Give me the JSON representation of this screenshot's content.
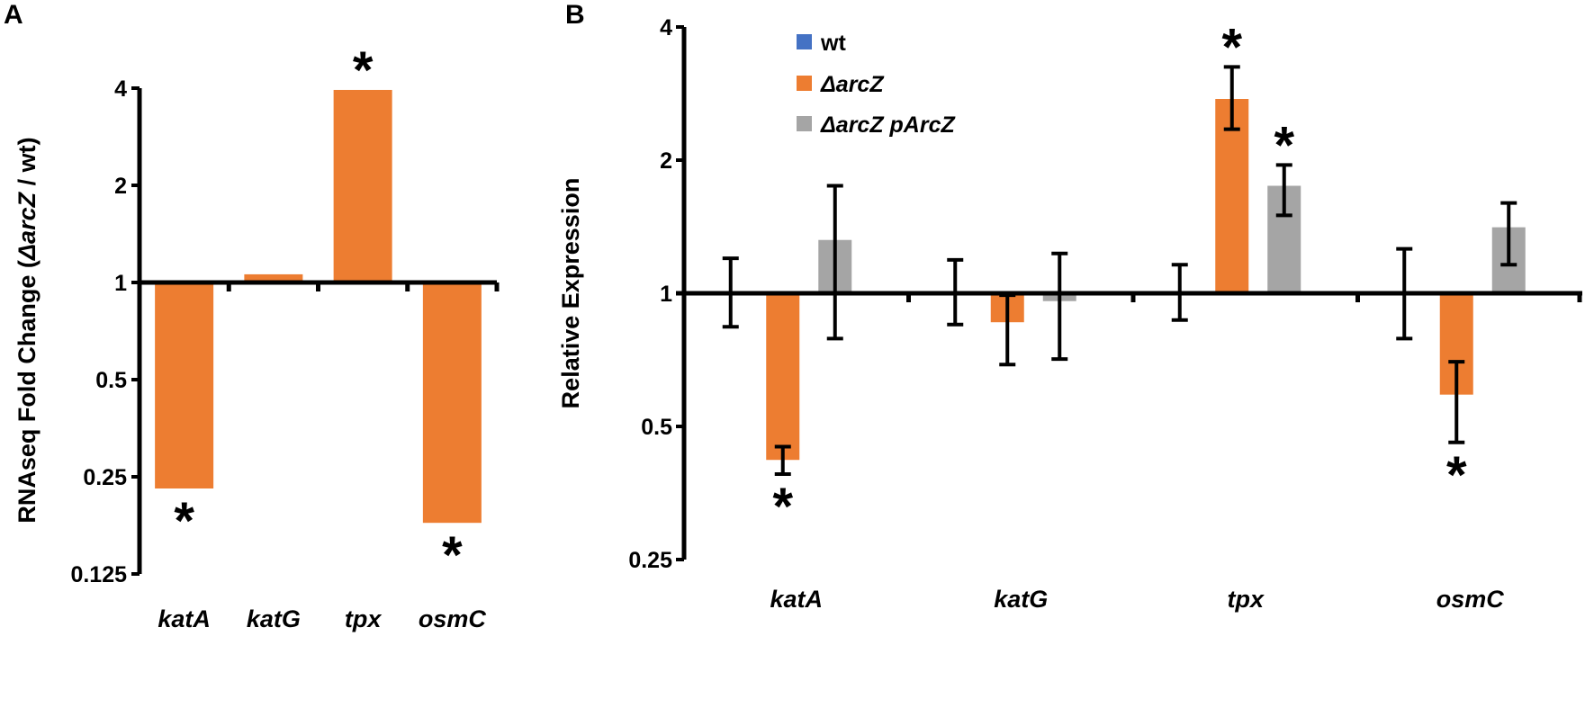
{
  "chart_data": [
    {
      "panel": "A",
      "type": "bar",
      "scale": "log2",
      "baseline": 1,
      "ylabel_parts": [
        "RNAseq Fold Change (",
        "ΔarcZ",
        " / wt)"
      ],
      "yticks": [
        0.125,
        0.25,
        0.5,
        1,
        2,
        4
      ],
      "ytick_labels": [
        "0.125",
        "0.25",
        "0.5",
        "1",
        "2",
        "4"
      ],
      "ylim": [
        0.125,
        4
      ],
      "categories": [
        "katA",
        "katG",
        "tpx",
        "osmC"
      ],
      "series": [
        {
          "name": "ΔarcZ",
          "color": "#ED7D31",
          "values": [
            0.23,
            1.06,
            3.95,
            0.18
          ]
        }
      ],
      "significance": [
        "*",
        "",
        "*",
        "*"
      ]
    },
    {
      "panel": "B",
      "type": "bar",
      "scale": "log2",
      "baseline": 1,
      "ylabel": "Relative Expression",
      "yticks": [
        0.25,
        0.5,
        1,
        2,
        4
      ],
      "ytick_labels": [
        "0.25",
        "0.5",
        "1",
        "2",
        "4"
      ],
      "ylim": [
        0.25,
        4
      ],
      "categories": [
        "katA",
        "katG",
        "tpx",
        "osmC"
      ],
      "legend": [
        "wt",
        "ΔarcZ",
        "ΔarcZ pArcZ"
      ],
      "legend_position": "top-center",
      "series": [
        {
          "name": "wt",
          "color": "#4472C4",
          "values": [
            1.0,
            1.0,
            1.0,
            1.0
          ],
          "err_low": [
            0.84,
            0.85,
            0.87,
            0.79
          ],
          "err_high": [
            1.2,
            1.19,
            1.16,
            1.26
          ]
        },
        {
          "name": "ΔarcZ",
          "color": "#ED7D31",
          "values": [
            0.42,
            0.86,
            2.75,
            0.59
          ],
          "err_low": [
            0.39,
            0.69,
            2.35,
            0.46
          ],
          "err_high": [
            0.45,
            0.99,
            3.25,
            0.7
          ]
        },
        {
          "name": "ΔarcZ pArcZ",
          "color": "#A5A5A5",
          "values": [
            1.32,
            0.96,
            1.75,
            1.41
          ],
          "err_low": [
            0.79,
            0.71,
            1.5,
            1.16
          ],
          "err_high": [
            1.75,
            1.23,
            1.95,
            1.6
          ]
        }
      ],
      "significance": [
        [
          "",
          "*",
          ""
        ],
        [
          "",
          "",
          ""
        ],
        [
          "",
          "*",
          "*"
        ],
        [
          "",
          "*",
          ""
        ]
      ]
    }
  ]
}
